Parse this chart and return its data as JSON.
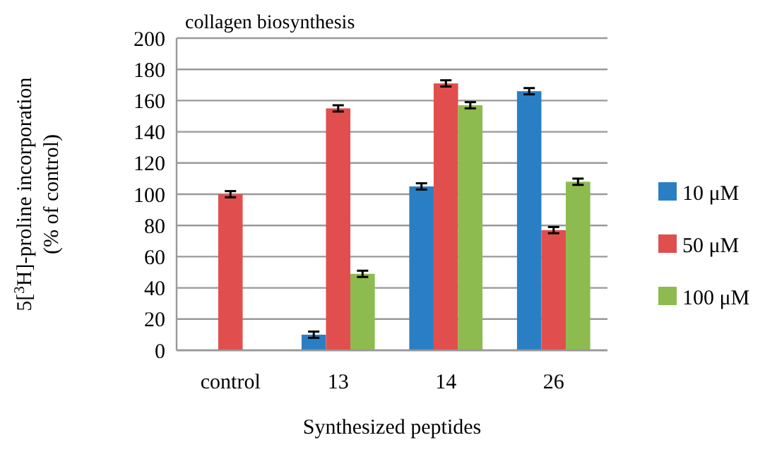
{
  "chart_data": {
    "type": "bar",
    "title": "collagen biosynthesis",
    "xlabel": "Synthesized peptides",
    "ylabel": "5[$^{3}$H]-proline incorporation\n(% of control)",
    "categories": [
      "control",
      "13",
      "14",
      "26"
    ],
    "series": [
      {
        "name": "10 μM",
        "color": "#2a7fc4",
        "values": [
          null,
          10,
          105,
          166
        ],
        "errors": [
          null,
          2,
          2,
          2
        ]
      },
      {
        "name": "50 μM",
        "color": "#e04f4d",
        "values": [
          100,
          155,
          171,
          77
        ],
        "errors": [
          2,
          2,
          2,
          2
        ]
      },
      {
        "name": "100 μM",
        "color": "#8dbb4f",
        "values": [
          null,
          49,
          157,
          108
        ],
        "errors": [
          null,
          2,
          2,
          2
        ]
      }
    ],
    "ylim": [
      0,
      200
    ],
    "yticks": [
      0,
      20,
      40,
      60,
      80,
      100,
      120,
      140,
      160,
      180,
      200
    ],
    "grid": "y",
    "legend": "right"
  }
}
